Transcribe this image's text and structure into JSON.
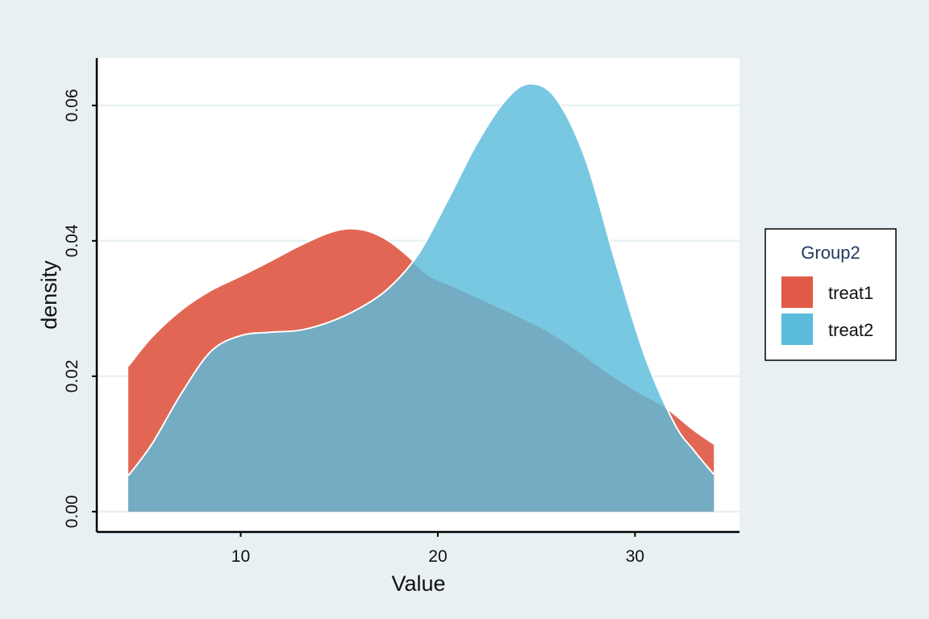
{
  "chart_data": {
    "type": "area",
    "xlabel": "Value",
    "ylabel": "density",
    "xlim": [
      2.7,
      35.3
    ],
    "ylim": [
      -0.003,
      0.067
    ],
    "x_ticks": [
      10,
      20,
      30
    ],
    "y_ticks": [
      0.0,
      0.02,
      0.04,
      0.06
    ],
    "x_tick_labels": [
      "10",
      "20",
      "30"
    ],
    "y_tick_labels": [
      "0.00",
      "0.02",
      "0.04",
      "0.06"
    ],
    "grid": "horizontal",
    "legend": {
      "title": "Group2",
      "placement": "right"
    },
    "colors": {
      "background": "#e8f0f3",
      "panel": "#ffffff",
      "grid": "#e8f0f3"
    },
    "series": [
      {
        "name": "treat1",
        "color": "#e05a47",
        "x": [
          4.3,
          5.5,
          7.0,
          8.5,
          10.0,
          11.5,
          13.0,
          14.5,
          15.5,
          16.5,
          17.5,
          18.5,
          19.5,
          21.0,
          22.5,
          24.0,
          25.5,
          27.0,
          28.5,
          30.0,
          31.5,
          33.0,
          34.0
        ],
        "y": [
          0.0215,
          0.0258,
          0.0298,
          0.0327,
          0.0348,
          0.037,
          0.0393,
          0.0412,
          0.0418,
          0.0414,
          0.04,
          0.0377,
          0.035,
          0.033,
          0.031,
          0.029,
          0.0268,
          0.024,
          0.0208,
          0.018,
          0.0155,
          0.012,
          0.01
        ]
      },
      {
        "name": "treat2",
        "color": "#5bbcdc",
        "x": [
          4.3,
          5.5,
          7.0,
          8.5,
          10.0,
          11.5,
          13.0,
          14.5,
          16.0,
          17.5,
          19.0,
          20.5,
          22.0,
          23.5,
          24.7,
          26.0,
          27.5,
          29.0,
          30.5,
          32.0,
          33.0,
          34.0
        ],
        "y": [
          0.0053,
          0.01,
          0.0175,
          0.0237,
          0.026,
          0.0265,
          0.0268,
          0.028,
          0.03,
          0.033,
          0.038,
          0.046,
          0.0545,
          0.061,
          0.0632,
          0.061,
          0.052,
          0.037,
          0.023,
          0.013,
          0.009,
          0.0055
        ]
      }
    ]
  }
}
